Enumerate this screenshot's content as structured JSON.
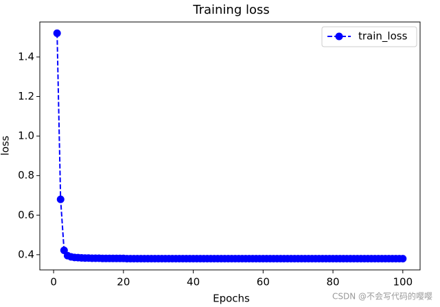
{
  "chart_data": {
    "type": "line",
    "title": "Training loss",
    "x_label": "Epochs",
    "y_label": "loss",
    "x": [
      1,
      2,
      3,
      4,
      5,
      6,
      7,
      8,
      9,
      10,
      11,
      12,
      13,
      14,
      15,
      16,
      17,
      18,
      19,
      20,
      21,
      22,
      23,
      24,
      25,
      26,
      27,
      28,
      29,
      30,
      31,
      32,
      33,
      34,
      35,
      36,
      37,
      38,
      39,
      40,
      41,
      42,
      43,
      44,
      45,
      46,
      47,
      48,
      49,
      50,
      51,
      52,
      53,
      54,
      55,
      56,
      57,
      58,
      59,
      60,
      61,
      62,
      63,
      64,
      65,
      66,
      67,
      68,
      69,
      70,
      71,
      72,
      73,
      74,
      75,
      76,
      77,
      78,
      79,
      80,
      81,
      82,
      83,
      84,
      85,
      86,
      87,
      88,
      89,
      90,
      91,
      92,
      93,
      94,
      95,
      96,
      97,
      98,
      99,
      100
    ],
    "series": [
      {
        "name": "train_loss",
        "color": "#0000ff",
        "values": [
          1.52,
          0.68,
          0.422,
          0.395,
          0.389,
          0.386,
          0.385,
          0.384,
          0.383,
          0.383,
          0.382,
          0.382,
          0.382,
          0.381,
          0.381,
          0.381,
          0.381,
          0.381,
          0.381,
          0.381,
          0.38,
          0.38,
          0.38,
          0.38,
          0.38,
          0.38,
          0.38,
          0.38,
          0.38,
          0.38,
          0.38,
          0.38,
          0.38,
          0.38,
          0.38,
          0.38,
          0.38,
          0.38,
          0.38,
          0.38,
          0.38,
          0.38,
          0.38,
          0.38,
          0.38,
          0.38,
          0.38,
          0.38,
          0.38,
          0.38,
          0.38,
          0.38,
          0.38,
          0.38,
          0.38,
          0.38,
          0.38,
          0.38,
          0.38,
          0.38,
          0.38,
          0.38,
          0.38,
          0.38,
          0.38,
          0.38,
          0.38,
          0.38,
          0.38,
          0.38,
          0.38,
          0.38,
          0.38,
          0.38,
          0.38,
          0.38,
          0.38,
          0.38,
          0.38,
          0.38,
          0.38,
          0.38,
          0.38,
          0.38,
          0.38,
          0.38,
          0.38,
          0.38,
          0.38,
          0.38,
          0.38,
          0.38,
          0.38,
          0.38,
          0.38,
          0.38,
          0.38,
          0.38,
          0.38,
          0.38
        ]
      }
    ],
    "xlim": [
      -3.95,
      104.95
    ],
    "xticks": [
      0,
      20,
      40,
      60,
      80,
      100
    ],
    "ylim": [
      0.323,
      1.577
    ],
    "yticks": [
      0.4,
      0.6,
      0.8,
      {
        "value": 1.0,
        "label": "1.0"
      },
      1.2,
      1.4
    ],
    "legend": "upper right",
    "watermark": "CSDN @不会写代码的嘤嘤"
  }
}
